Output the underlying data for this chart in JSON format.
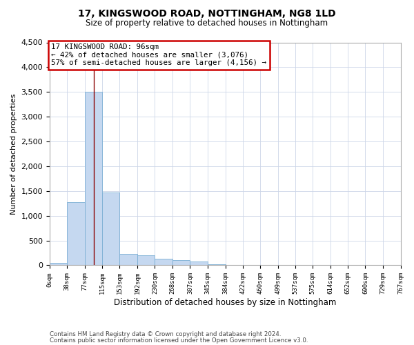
{
  "title1": "17, KINGSWOOD ROAD, NOTTINGHAM, NG8 1LD",
  "title2": "Size of property relative to detached houses in Nottingham",
  "xlabel": "Distribution of detached houses by size in Nottingham",
  "ylabel": "Number of detached properties",
  "annotation_title": "17 KINGSWOOD ROAD: 96sqm",
  "annotation_line1": "← 42% of detached houses are smaller (3,076)",
  "annotation_line2": "57% of semi-detached houses are larger (4,156) →",
  "footer1": "Contains HM Land Registry data © Crown copyright and database right 2024.",
  "footer2": "Contains public sector information licensed under the Open Government Licence v3.0.",
  "property_size": 96,
  "bin_edges": [
    0,
    38,
    77,
    115,
    153,
    192,
    230,
    268,
    307,
    345,
    384,
    422,
    460,
    499,
    537,
    575,
    614,
    652,
    690,
    729,
    767
  ],
  "bar_heights": [
    50,
    1270,
    3500,
    1470,
    230,
    195,
    130,
    105,
    75,
    20,
    8,
    0,
    0,
    0,
    0,
    0,
    0,
    0,
    0,
    8
  ],
  "bar_color": "#c5d8f0",
  "bar_edge_color": "#7bafd4",
  "vline_color": "#8b0000",
  "annotation_box_color": "#ffffff",
  "annotation_box_edge_color": "#cc0000",
  "background_color": "#ffffff",
  "grid_color": "#ccd6e8",
  "ylim": [
    0,
    4500
  ],
  "yticks": [
    0,
    500,
    1000,
    1500,
    2000,
    2500,
    3000,
    3500,
    4000,
    4500
  ]
}
